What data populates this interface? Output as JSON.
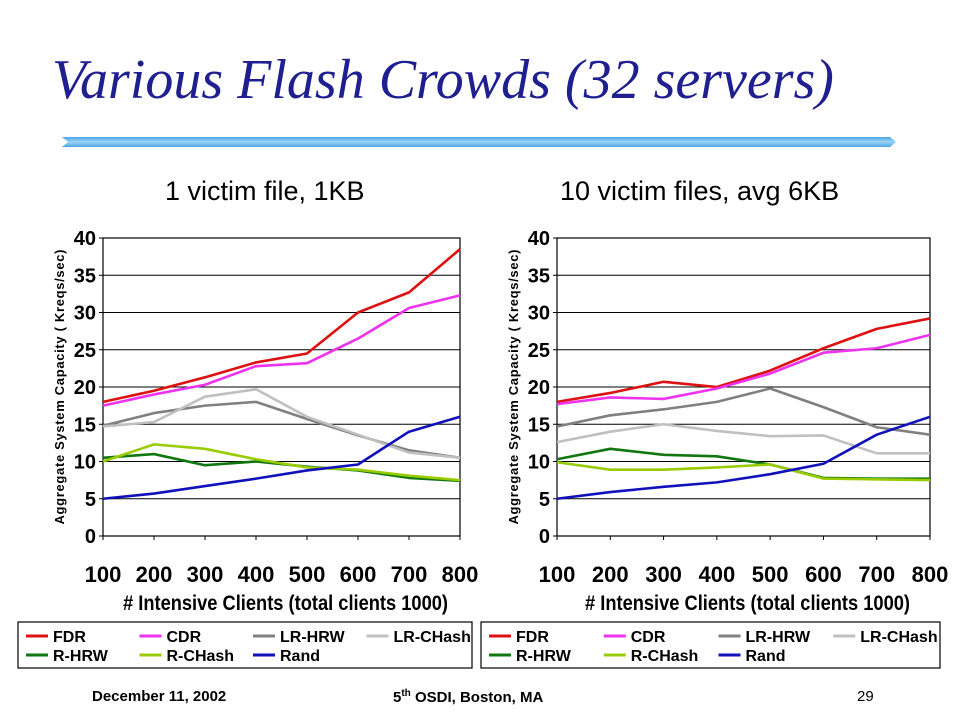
{
  "slide": {
    "title": "Various Flash Crowds (32 servers)",
    "footer_left": "December 11, 2002",
    "footer_center_prefix": "5",
    "footer_center_sup": "th",
    "footer_center_suffix": " OSDI, Boston, MA",
    "page_number": "29"
  },
  "chart_data": [
    {
      "type": "line",
      "title": "1 victim file, 1KB",
      "xlabel": "# Intensive Clients (total clients 1000)",
      "ylabel": "Aggregate System Capacity ( Kreqs/sec)",
      "x": [
        100,
        200,
        300,
        400,
        500,
        600,
        700,
        800
      ],
      "ylim": [
        0,
        40
      ],
      "yticks": [
        0,
        5,
        10,
        15,
        20,
        25,
        30,
        35,
        40
      ],
      "grid": "horizontal",
      "legend": "bottom",
      "series": [
        {
          "name": "FDR",
          "color": "#dd1111",
          "values": [
            18,
            19.5,
            21.3,
            23.3,
            24.5,
            30,
            32.7,
            38.5
          ]
        },
        {
          "name": "CDR",
          "color": "#ee33ee",
          "values": [
            17.5,
            19,
            20.3,
            22.8,
            23.2,
            26.5,
            30.6,
            32.3
          ]
        },
        {
          "name": "LR-HRW",
          "color": "#808080",
          "values": [
            14.8,
            16.5,
            17.5,
            18,
            15.7,
            13.5,
            11.5,
            10.5
          ]
        },
        {
          "name": "LR-CHash",
          "color": "#c0c0c0",
          "values": [
            14.7,
            15.3,
            18.7,
            19.7,
            16,
            13.6,
            11.2,
            10.5
          ]
        },
        {
          "name": "R-HRW",
          "color": "#117711",
          "values": [
            10.5,
            11,
            9.5,
            10,
            9.3,
            8.8,
            7.8,
            7.4
          ]
        },
        {
          "name": "R-CHash",
          "color": "#99cc00",
          "values": [
            10,
            12.3,
            11.7,
            10.3,
            9.2,
            8.9,
            8.1,
            7.5
          ]
        },
        {
          "name": "Rand",
          "color": "#1111bb",
          "values": [
            5,
            5.7,
            6.7,
            7.7,
            8.8,
            9.6,
            14,
            16
          ]
        }
      ]
    },
    {
      "type": "line",
      "title": "10 victim files, avg 6KB",
      "xlabel": "# Intensive Clients (total clients 1000)",
      "ylabel": "Aggregate System Capacity ( Kreqs/sec)",
      "x": [
        100,
        200,
        300,
        400,
        500,
        600,
        700,
        800
      ],
      "ylim": [
        0,
        40
      ],
      "yticks": [
        0,
        5,
        10,
        15,
        20,
        25,
        30,
        35,
        40
      ],
      "grid": "horizontal",
      "legend": "bottom",
      "series": [
        {
          "name": "FDR",
          "color": "#dd1111",
          "values": [
            18,
            19.2,
            20.7,
            20,
            22.2,
            25.2,
            27.8,
            29.2
          ]
        },
        {
          "name": "CDR",
          "color": "#ee33ee",
          "values": [
            17.7,
            18.6,
            18.4,
            19.8,
            21.8,
            24.6,
            25.2,
            27
          ]
        },
        {
          "name": "LR-HRW",
          "color": "#808080",
          "values": [
            14.7,
            16.2,
            17,
            18,
            19.8,
            17.3,
            14.6,
            13.6
          ]
        },
        {
          "name": "LR-CHash",
          "color": "#c0c0c0",
          "values": [
            12.6,
            14,
            15,
            14.1,
            13.4,
            13.5,
            11.1,
            11.1
          ]
        },
        {
          "name": "R-HRW",
          "color": "#117711",
          "values": [
            10.3,
            11.7,
            10.9,
            10.7,
            9.6,
            7.8,
            7.7,
            7.7
          ]
        },
        {
          "name": "R-CHash",
          "color": "#99cc00",
          "values": [
            9.9,
            8.9,
            8.9,
            9.2,
            9.6,
            7.7,
            7.6,
            7.5
          ]
        },
        {
          "name": "Rand",
          "color": "#1111bb",
          "values": [
            5,
            5.9,
            6.6,
            7.2,
            8.3,
            9.7,
            13.6,
            16
          ]
        }
      ]
    }
  ]
}
